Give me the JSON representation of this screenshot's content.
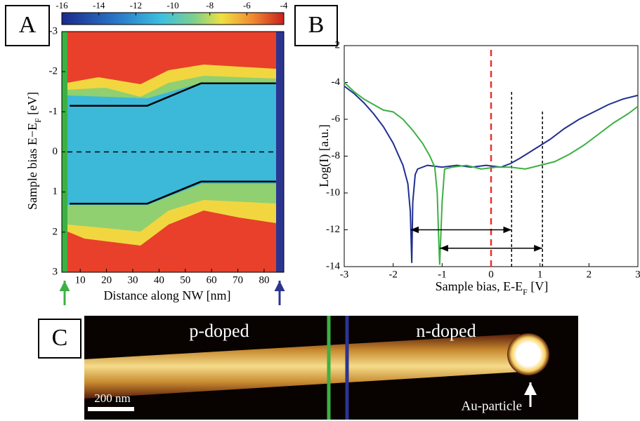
{
  "chart_data": [
    {
      "type": "heatmap",
      "panel_label": "A",
      "colorbar": {
        "lim": [
          -16,
          -4
        ],
        "ticks": [
          -16,
          -14,
          -12,
          -10,
          -8,
          -6,
          -4
        ]
      },
      "xlabel": "Distance along NW [nm]",
      "ylabel": [
        "Sample bias E−E",
        "F",
        " [eV]"
      ],
      "xlim": [
        3,
        87.5
      ],
      "ylim": [
        -3,
        3
      ],
      "y_inverted": true,
      "xticks": [
        10,
        20,
        30,
        40,
        50,
        60,
        70,
        80
      ],
      "yticks": [
        -3,
        -2,
        -1,
        0,
        1,
        2,
        3
      ],
      "hline": 0,
      "series": [
        {
          "color": "#000000",
          "x": [
            6,
            35.5,
            56,
            84.5
          ],
          "y": [
            -1.15,
            -1.15,
            -1.71,
            -1.71
          ]
        },
        {
          "color": "#000000",
          "x": [
            6,
            35.5,
            56,
            84.5
          ],
          "y": [
            1.29,
            1.29,
            0.74,
            0.74
          ]
        }
      ]
    },
    {
      "type": "line",
      "panel_label": "B",
      "xlabel": [
        "Sample bias, E-E",
        "F",
        " [V]"
      ],
      "ylabel": "Log(I) [a.u.]",
      "xlim": [
        -3,
        3
      ],
      "ylim": [
        -14,
        -2
      ],
      "xticks": [
        -3,
        -2,
        -1,
        0,
        1,
        2,
        3
      ],
      "yticks": [
        -14,
        -12,
        -10,
        -8,
        -6,
        -4,
        -2
      ],
      "series": [
        {
          "color": "#1f2f8f",
          "x": [
            -3,
            -2.8,
            -2.6,
            -2.4,
            -2.2,
            -2.0,
            -1.9,
            -1.8,
            -1.7,
            -1.65,
            -1.62,
            -1.6,
            -1.55,
            -1.5,
            -1.3,
            -1.0,
            -0.7,
            -0.4,
            -0.1,
            0.2,
            0.4,
            0.6,
            0.9,
            1.2,
            1.5,
            1.8,
            2.1,
            2.4,
            2.7,
            3
          ],
          "y": [
            -4.2,
            -4.6,
            -5.1,
            -5.7,
            -6.4,
            -7.3,
            -7.9,
            -8.5,
            -9.5,
            -11,
            -13.8,
            -10.5,
            -9,
            -8.7,
            -8.5,
            -8.6,
            -8.5,
            -8.6,
            -8.5,
            -8.6,
            -8.4,
            -8.1,
            -7.6,
            -7.1,
            -6.5,
            -6.0,
            -5.6,
            -5.2,
            -4.9,
            -4.7
          ]
        },
        {
          "color": "#3cb043",
          "x": [
            -3,
            -2.8,
            -2.6,
            -2.4,
            -2.2,
            -2.0,
            -1.8,
            -1.6,
            -1.4,
            -1.25,
            -1.15,
            -1.1,
            -1.07,
            -1.05,
            -1.0,
            -0.95,
            -0.8,
            -0.5,
            -0.2,
            0.1,
            0.4,
            0.7,
            1.0,
            1.3,
            1.6,
            1.9,
            2.2,
            2.5,
            2.8,
            3
          ],
          "y": [
            -4.0,
            -4.5,
            -4.9,
            -5.2,
            -5.5,
            -5.6,
            -6.0,
            -6.6,
            -7.3,
            -8.0,
            -8.6,
            -10,
            -12.5,
            -13.9,
            -10.5,
            -8.7,
            -8.6,
            -8.5,
            -8.7,
            -8.6,
            -8.6,
            -8.7,
            -8.5,
            -8.3,
            -7.9,
            -7.4,
            -6.8,
            -6.2,
            -5.7,
            -5.3
          ]
        }
      ],
      "vlines": [
        {
          "x": 0,
          "y": [
            -14,
            -2
          ],
          "color": "#e8322a"
        },
        {
          "x": 0.42,
          "y": [
            -14,
            -4.4
          ],
          "color": "#000000"
        },
        {
          "x": 1.05,
          "y": [
            -14,
            -5.5
          ],
          "color": "#000000"
        }
      ],
      "arrows": [
        {
          "x": [
            -1.65,
            0.42
          ],
          "y": -12
        },
        {
          "x": [
            -1.05,
            1.05
          ],
          "y": -13
        }
      ]
    }
  ],
  "image_panel": {
    "panel_label": "C",
    "texts": [
      "p-doped",
      "n-doped",
      "200 nm",
      "Au-particle"
    ]
  }
}
